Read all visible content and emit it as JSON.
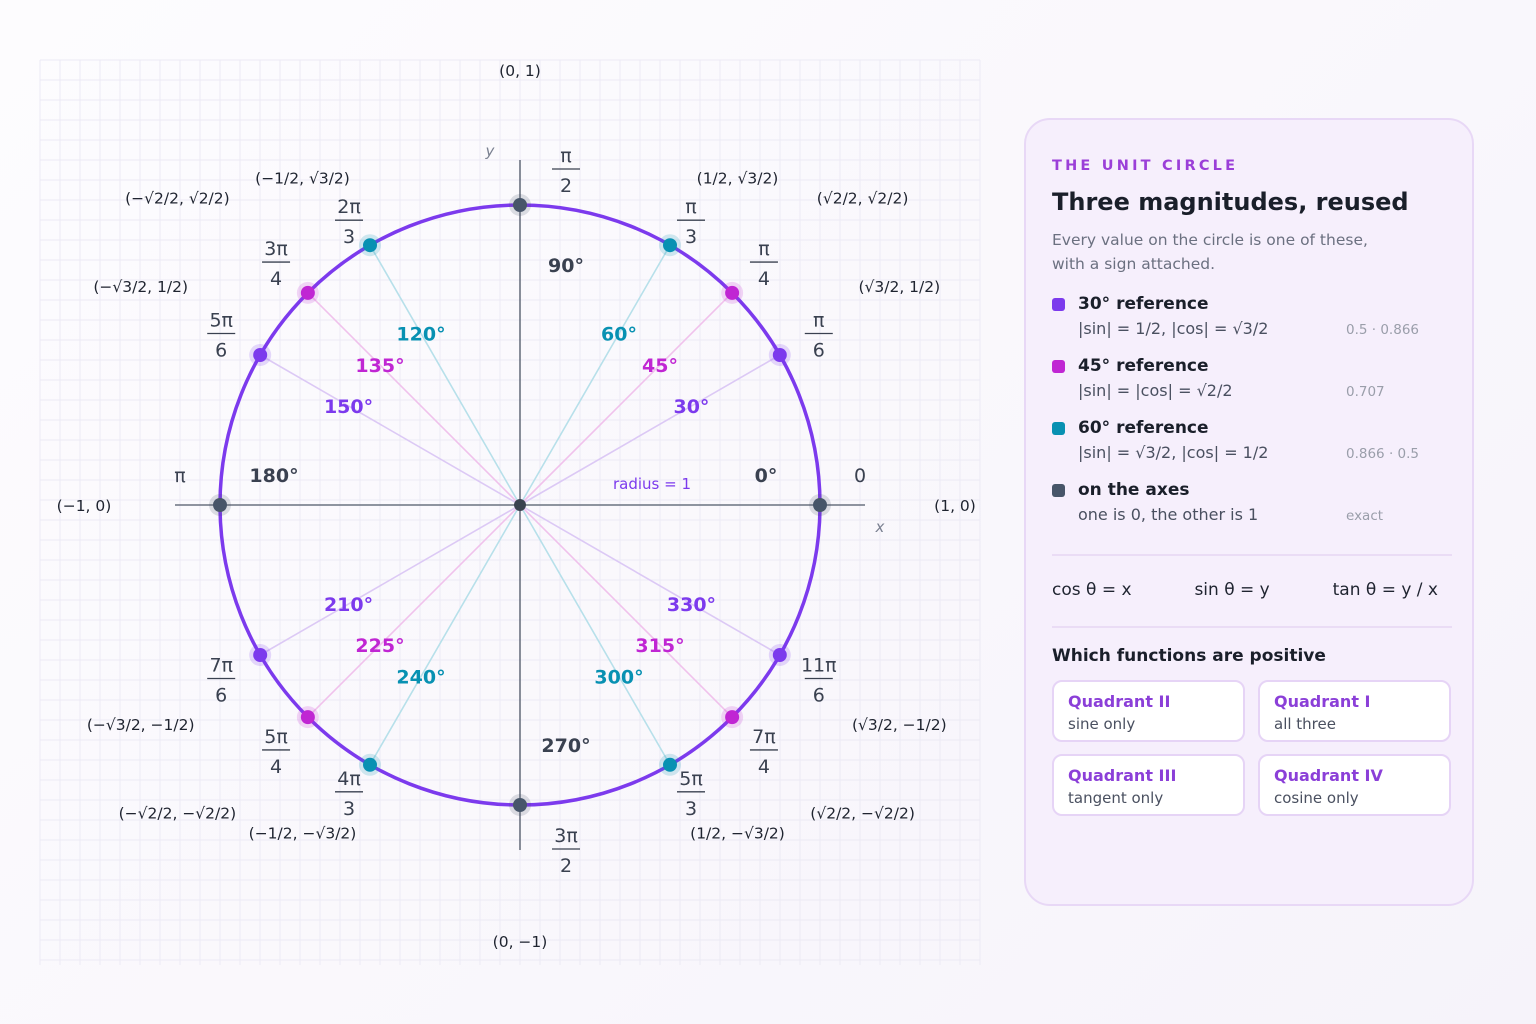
{
  "colors": {
    "circle": "#7c3aed",
    "ref30": "#7c3aed",
    "ref45": "#c026d3",
    "ref60": "#0891b2",
    "axes": "#475569"
  },
  "diagram": {
    "axis_x_label": "x",
    "axis_y_label": "y",
    "radius_label": "radius = 1",
    "points": [
      {
        "deg": 0,
        "group": "axis",
        "deg_label": "0°",
        "rad_num": "0",
        "rad_den": "",
        "coord": "(1, 0)"
      },
      {
        "deg": 30,
        "group": "r30",
        "deg_label": "30°",
        "rad_num": "π",
        "rad_den": "6",
        "coord": "(√3/2, 1/2)"
      },
      {
        "deg": 45,
        "group": "r45",
        "deg_label": "45°",
        "rad_num": "π",
        "rad_den": "4",
        "coord": "(√2/2, √2/2)"
      },
      {
        "deg": 60,
        "group": "r60",
        "deg_label": "60°",
        "rad_num": "π",
        "rad_den": "3",
        "coord": "(1/2, √3/2)"
      },
      {
        "deg": 90,
        "group": "axis",
        "deg_label": "90°",
        "rad_num": "π",
        "rad_den": "2",
        "coord": "(0, 1)"
      },
      {
        "deg": 120,
        "group": "r60",
        "deg_label": "120°",
        "rad_num": "2π",
        "rad_den": "3",
        "coord": "(−1/2, √3/2)"
      },
      {
        "deg": 135,
        "group": "r45",
        "deg_label": "135°",
        "rad_num": "3π",
        "rad_den": "4",
        "coord": "(−√2/2, √2/2)"
      },
      {
        "deg": 150,
        "group": "r30",
        "deg_label": "150°",
        "rad_num": "5π",
        "rad_den": "6",
        "coord": "(−√3/2, 1/2)"
      },
      {
        "deg": 180,
        "group": "axis",
        "deg_label": "180°",
        "rad_num": "π",
        "rad_den": "",
        "coord": "(−1, 0)"
      },
      {
        "deg": 210,
        "group": "r30",
        "deg_label": "210°",
        "rad_num": "7π",
        "rad_den": "6",
        "coord": "(−√3/2, −1/2)"
      },
      {
        "deg": 225,
        "group": "r45",
        "deg_label": "225°",
        "rad_num": "5π",
        "rad_den": "4",
        "coord": "(−√2/2, −√2/2)"
      },
      {
        "deg": 240,
        "group": "r60",
        "deg_label": "240°",
        "rad_num": "4π",
        "rad_den": "3",
        "coord": "(−1/2, −√3/2)"
      },
      {
        "deg": 270,
        "group": "axis",
        "deg_label": "270°",
        "rad_num": "3π",
        "rad_den": "2",
        "coord": "(0, −1)"
      },
      {
        "deg": 300,
        "group": "r60",
        "deg_label": "300°",
        "rad_num": "5π",
        "rad_den": "3",
        "coord": "(1/2, −√3/2)"
      },
      {
        "deg": 315,
        "group": "r45",
        "deg_label": "315°",
        "rad_num": "7π",
        "rad_den": "4",
        "coord": "(√2/2, −√2/2)"
      },
      {
        "deg": 330,
        "group": "r30",
        "deg_label": "330°",
        "rad_num": "11π",
        "rad_den": "6",
        "coord": "(√3/2, −1/2)"
      }
    ]
  },
  "panel": {
    "eyebrow": "THE UNIT CIRCLE",
    "title": "Three magnitudes, reused",
    "subtitle_line1": "Every value on the circle is one of these,",
    "subtitle_line2": "with a sign attached.",
    "legend": [
      {
        "color": "#7c3aed",
        "title": "30° reference",
        "desc": "|sin| = 1/2, |cos| = √3/2",
        "value": "0.5 · 0.866"
      },
      {
        "color": "#c026d3",
        "title": "45° reference",
        "desc": "|sin| = |cos| = √2/2",
        "value": "0.707"
      },
      {
        "color": "#0891b2",
        "title": "60° reference",
        "desc": "|sin| = √3/2, |cos| = 1/2",
        "value": "0.866 · 0.5"
      },
      {
        "color": "#475569",
        "title": "on the axes",
        "desc": "one is 0, the other is 1",
        "value": "exact"
      }
    ],
    "formulas": [
      "cos θ = x",
      "sin θ = y",
      "tan θ = y / x"
    ],
    "positive_title": "Which functions are positive",
    "quadrants": [
      {
        "title": "Quadrant II",
        "desc": "sine only"
      },
      {
        "title": "Quadrant I",
        "desc": "all three"
      },
      {
        "title": "Quadrant III",
        "desc": "tangent only"
      },
      {
        "title": "Quadrant IV",
        "desc": "cosine only"
      }
    ]
  }
}
